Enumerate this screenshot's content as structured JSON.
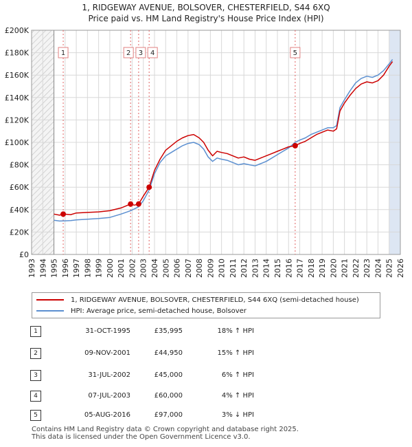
{
  "title_line1": "1, RIDGEWAY AVENUE, BOLSOVER, CHESTERFIELD, S44 6XQ",
  "title_line2": "Price paid vs. HM Land Registry's House Price Index (HPI)",
  "legend": {
    "red_label": "1, RIDGEWAY AVENUE, BOLSOVER, CHESTERFIELD, S44 6XQ (semi-detached house)",
    "blue_label": "HPI: Average price, semi-detached house, Bolsover"
  },
  "colors": {
    "red": "#cc0000",
    "blue": "#5b8fd0",
    "shade": "#dde6f3",
    "grid": "#d8d8d8"
  },
  "sales": [
    {
      "num": "1",
      "date": "31-OCT-1995",
      "price": "£35,995",
      "hpi": "18% ↑ HPI"
    },
    {
      "num": "2",
      "date": "09-NOV-2001",
      "price": "£44,950",
      "hpi": "15% ↑ HPI"
    },
    {
      "num": "3",
      "date": "31-JUL-2002",
      "price": "£45,000",
      "hpi": "6% ↑ HPI"
    },
    {
      "num": "4",
      "date": "07-JUL-2003",
      "price": "£60,000",
      "hpi": "4% ↑ HPI"
    },
    {
      "num": "5",
      "date": "05-AUG-2016",
      "price": "£97,000",
      "hpi": "3% ↓ HPI"
    }
  ],
  "footer_line1": "Contains HM Land Registry data © Crown copyright and database right 2025.",
  "footer_line2": "This data is licensed under the Open Government Licence v3.0.",
  "chart_data": {
    "type": "line",
    "title": "Price paid vs. HM Land Registry's House Price Index (HPI)",
    "xlim": [
      1993,
      2026
    ],
    "ylim": [
      0,
      200000
    ],
    "x_ticks": [
      1993,
      1994,
      1995,
      1996,
      1997,
      1998,
      1999,
      2000,
      2001,
      2002,
      2003,
      2004,
      2005,
      2006,
      2007,
      2008,
      2009,
      2010,
      2011,
      2012,
      2013,
      2014,
      2015,
      2016,
      2017,
      2018,
      2019,
      2020,
      2021,
      2022,
      2023,
      2024,
      2025,
      2026
    ],
    "y_ticks": [
      0,
      20000,
      40000,
      60000,
      80000,
      100000,
      120000,
      140000,
      160000,
      180000,
      200000
    ],
    "y_tick_labels": [
      "£0",
      "£20K",
      "£40K",
      "£60K",
      "£80K",
      "£100K",
      "£120K",
      "£140K",
      "£160K",
      "£180K",
      "£200K"
    ],
    "hatched_before": 1995.0,
    "shaded_after": 2025.0,
    "series": [
      {
        "name": "1, RIDGEWAY AVENUE, BOLSOVER, CHESTERFIELD, S44 6XQ (semi-detached house)",
        "color": "#cc0000",
        "points": [
          [
            1995.0,
            36000
          ],
          [
            1995.5,
            35000
          ],
          [
            1995.83,
            36000
          ],
          [
            1996.5,
            35500
          ],
          [
            1997,
            37000
          ],
          [
            1998,
            37500
          ],
          [
            1999,
            38000
          ],
          [
            2000,
            39000
          ],
          [
            2001,
            41500
          ],
          [
            2001.86,
            44950
          ],
          [
            2002.2,
            44000
          ],
          [
            2002.58,
            45000
          ],
          [
            2003,
            52000
          ],
          [
            2003.52,
            60000
          ],
          [
            2004,
            75000
          ],
          [
            2004.5,
            85000
          ],
          [
            2005,
            93000
          ],
          [
            2005.5,
            97000
          ],
          [
            2006,
            101000
          ],
          [
            2006.5,
            104000
          ],
          [
            2007,
            106000
          ],
          [
            2007.5,
            107000
          ],
          [
            2008,
            104000
          ],
          [
            2008.4,
            100000
          ],
          [
            2008.8,
            93000
          ],
          [
            2009.2,
            88000
          ],
          [
            2009.6,
            92000
          ],
          [
            2010,
            91000
          ],
          [
            2010.5,
            90000
          ],
          [
            2011,
            88000
          ],
          [
            2011.5,
            86000
          ],
          [
            2012,
            87000
          ],
          [
            2012.5,
            85000
          ],
          [
            2013,
            84000
          ],
          [
            2013.5,
            86000
          ],
          [
            2014,
            88000
          ],
          [
            2014.5,
            90000
          ],
          [
            2015,
            92000
          ],
          [
            2015.5,
            94000
          ],
          [
            2016,
            96000
          ],
          [
            2016.59,
            97000
          ],
          [
            2017,
            99000
          ],
          [
            2017.5,
            101000
          ],
          [
            2018,
            104000
          ],
          [
            2018.5,
            107000
          ],
          [
            2019,
            109000
          ],
          [
            2019.5,
            111000
          ],
          [
            2020,
            110000
          ],
          [
            2020.3,
            112000
          ],
          [
            2020.6,
            128000
          ],
          [
            2021,
            135000
          ],
          [
            2021.5,
            142000
          ],
          [
            2022,
            148000
          ],
          [
            2022.5,
            152000
          ],
          [
            2023,
            154000
          ],
          [
            2023.5,
            153000
          ],
          [
            2024,
            155000
          ],
          [
            2024.5,
            160000
          ],
          [
            2025,
            168000
          ],
          [
            2025.3,
            172000
          ]
        ]
      },
      {
        "name": "HPI: Average price, semi-detached house, Bolsover",
        "color": "#5b8fd0",
        "points": [
          [
            1995.0,
            30500
          ],
          [
            1995.5,
            29800
          ],
          [
            1996,
            30000
          ],
          [
            1996.5,
            30200
          ],
          [
            1997,
            30800
          ],
          [
            1998,
            31500
          ],
          [
            1999,
            32000
          ],
          [
            2000,
            33000
          ],
          [
            2001,
            36000
          ],
          [
            2001.86,
            39000
          ],
          [
            2002.58,
            42500
          ],
          [
            2003,
            48000
          ],
          [
            2003.52,
            57500
          ],
          [
            2004,
            72000
          ],
          [
            2004.5,
            82000
          ],
          [
            2005,
            88000
          ],
          [
            2005.5,
            91000
          ],
          [
            2006,
            94000
          ],
          [
            2006.5,
            97000
          ],
          [
            2007,
            99000
          ],
          [
            2007.5,
            100000
          ],
          [
            2008,
            98000
          ],
          [
            2008.4,
            94000
          ],
          [
            2008.8,
            87000
          ],
          [
            2009.2,
            83000
          ],
          [
            2009.6,
            86000
          ],
          [
            2010,
            85000
          ],
          [
            2010.5,
            84000
          ],
          [
            2011,
            82000
          ],
          [
            2011.5,
            80000
          ],
          [
            2012,
            81000
          ],
          [
            2012.5,
            80000
          ],
          [
            2013,
            79000
          ],
          [
            2013.5,
            81000
          ],
          [
            2014,
            83000
          ],
          [
            2014.5,
            86000
          ],
          [
            2015,
            89000
          ],
          [
            2015.5,
            92000
          ],
          [
            2016,
            95000
          ],
          [
            2016.59,
            100000
          ],
          [
            2017,
            102000
          ],
          [
            2017.5,
            104000
          ],
          [
            2018,
            107000
          ],
          [
            2018.5,
            109000
          ],
          [
            2019,
            111000
          ],
          [
            2019.5,
            113000
          ],
          [
            2020,
            113000
          ],
          [
            2020.3,
            115000
          ],
          [
            2020.6,
            131000
          ],
          [
            2021,
            138000
          ],
          [
            2021.5,
            146000
          ],
          [
            2022,
            153000
          ],
          [
            2022.5,
            157000
          ],
          [
            2023,
            159000
          ],
          [
            2023.5,
            158000
          ],
          [
            2024,
            160000
          ],
          [
            2024.5,
            164000
          ],
          [
            2025,
            170000
          ],
          [
            2025.3,
            174000
          ]
        ]
      }
    ],
    "annotations": [
      {
        "label": "1",
        "x": 1995.83,
        "y": 35995
      },
      {
        "label": "2",
        "x": 2001.86,
        "y": 44950
      },
      {
        "label": "3",
        "x": 2002.58,
        "y": 45000
      },
      {
        "label": "4",
        "x": 2003.52,
        "y": 60000
      },
      {
        "label": "5",
        "x": 2016.59,
        "y": 97000
      }
    ]
  }
}
